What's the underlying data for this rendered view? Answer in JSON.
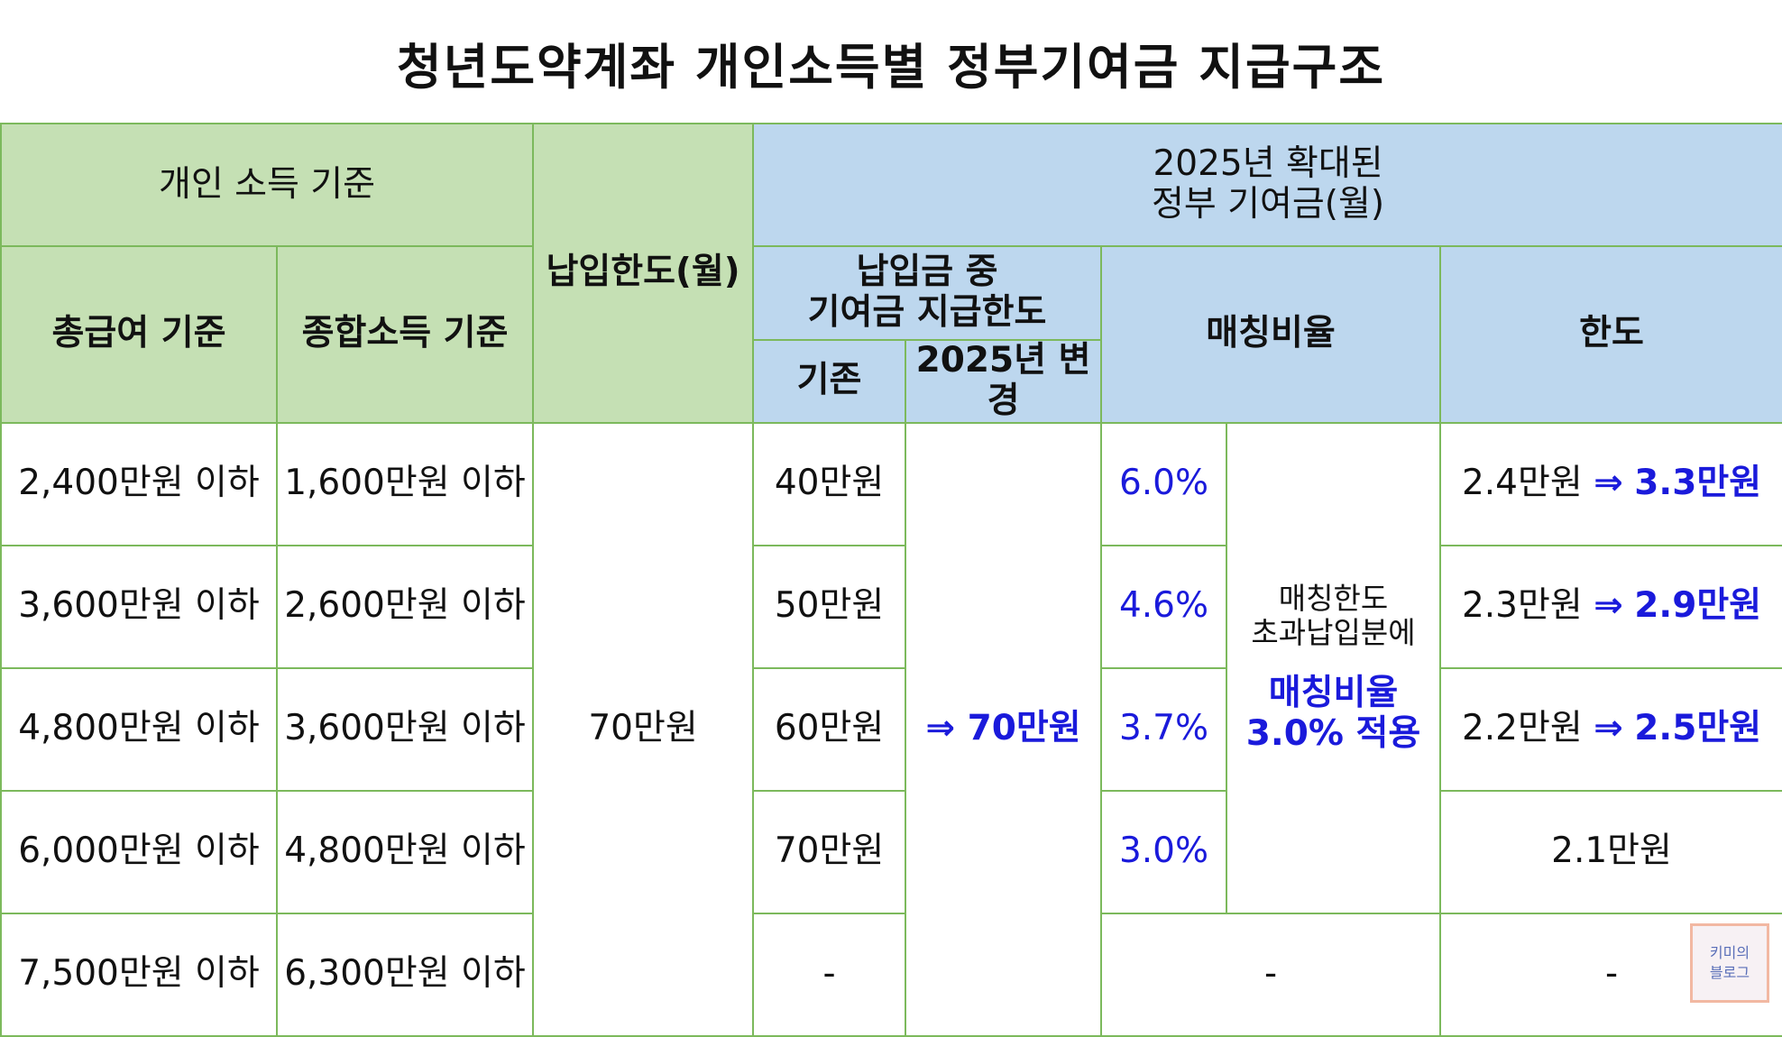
{
  "title": "청년도약계좌 개인소득별 정부기여금 지급구조",
  "header": {
    "income_group": "개인 소득 기준",
    "gross_pay": "총급여 기준",
    "total_income": "종합소득 기준",
    "payment_limit": "납입한도(월)",
    "expanded_line1": "2025년 확대된",
    "expanded_line2": "정부 기여금(월)",
    "contrib_limit_line1": "납입금 중",
    "contrib_limit_line2": "기여금 지급한도",
    "existing": "기존",
    "changed_2025": "2025년 변경",
    "matching_rate": "매칭비율",
    "limit": "한도"
  },
  "rows": [
    {
      "gross": "2,400만원 이하",
      "total": "1,600만원 이하",
      "existing": "40만원",
      "rate": "6.0%",
      "limit_old": "2.4만원",
      "arrow": "⇒",
      "limit_new": "3.3만원"
    },
    {
      "gross": "3,600만원 이하",
      "total": "2,600만원 이하",
      "existing": "50만원",
      "rate": "4.6%",
      "limit_old": "2.3만원",
      "arrow": "⇒",
      "limit_new": "2.9만원"
    },
    {
      "gross": "4,800만원 이하",
      "total": "3,600만원 이하",
      "existing": "60만원",
      "rate": "3.7%",
      "limit_old": "2.2만원",
      "arrow": "⇒",
      "limit_new": "2.5만원"
    },
    {
      "gross": "6,000만원 이하",
      "total": "4,800만원 이하",
      "existing": "70만원",
      "rate": "3.0%",
      "limit_plain": "2.1만원"
    },
    {
      "gross": "7,500만원 이하",
      "total": "6,300만원 이하",
      "existing": "-",
      "rate_dash": "-",
      "limit_dash": "-"
    }
  ],
  "merged": {
    "payment_limit_value": "70만원",
    "changed_value": "⇒ 70만원",
    "excess_line1": "매칭한도",
    "excess_line2": "초과납입분에",
    "excess_rate_line1": "매칭비율",
    "excess_rate_line2": "3.0% 적용"
  },
  "stamp": {
    "line1": "키미의",
    "line2": "블로그"
  },
  "colors": {
    "green_header": "#c5e0b4",
    "blue_header": "#bdd7ee",
    "border": "#7cb95c",
    "accent_blue": "#1a1adb"
  }
}
